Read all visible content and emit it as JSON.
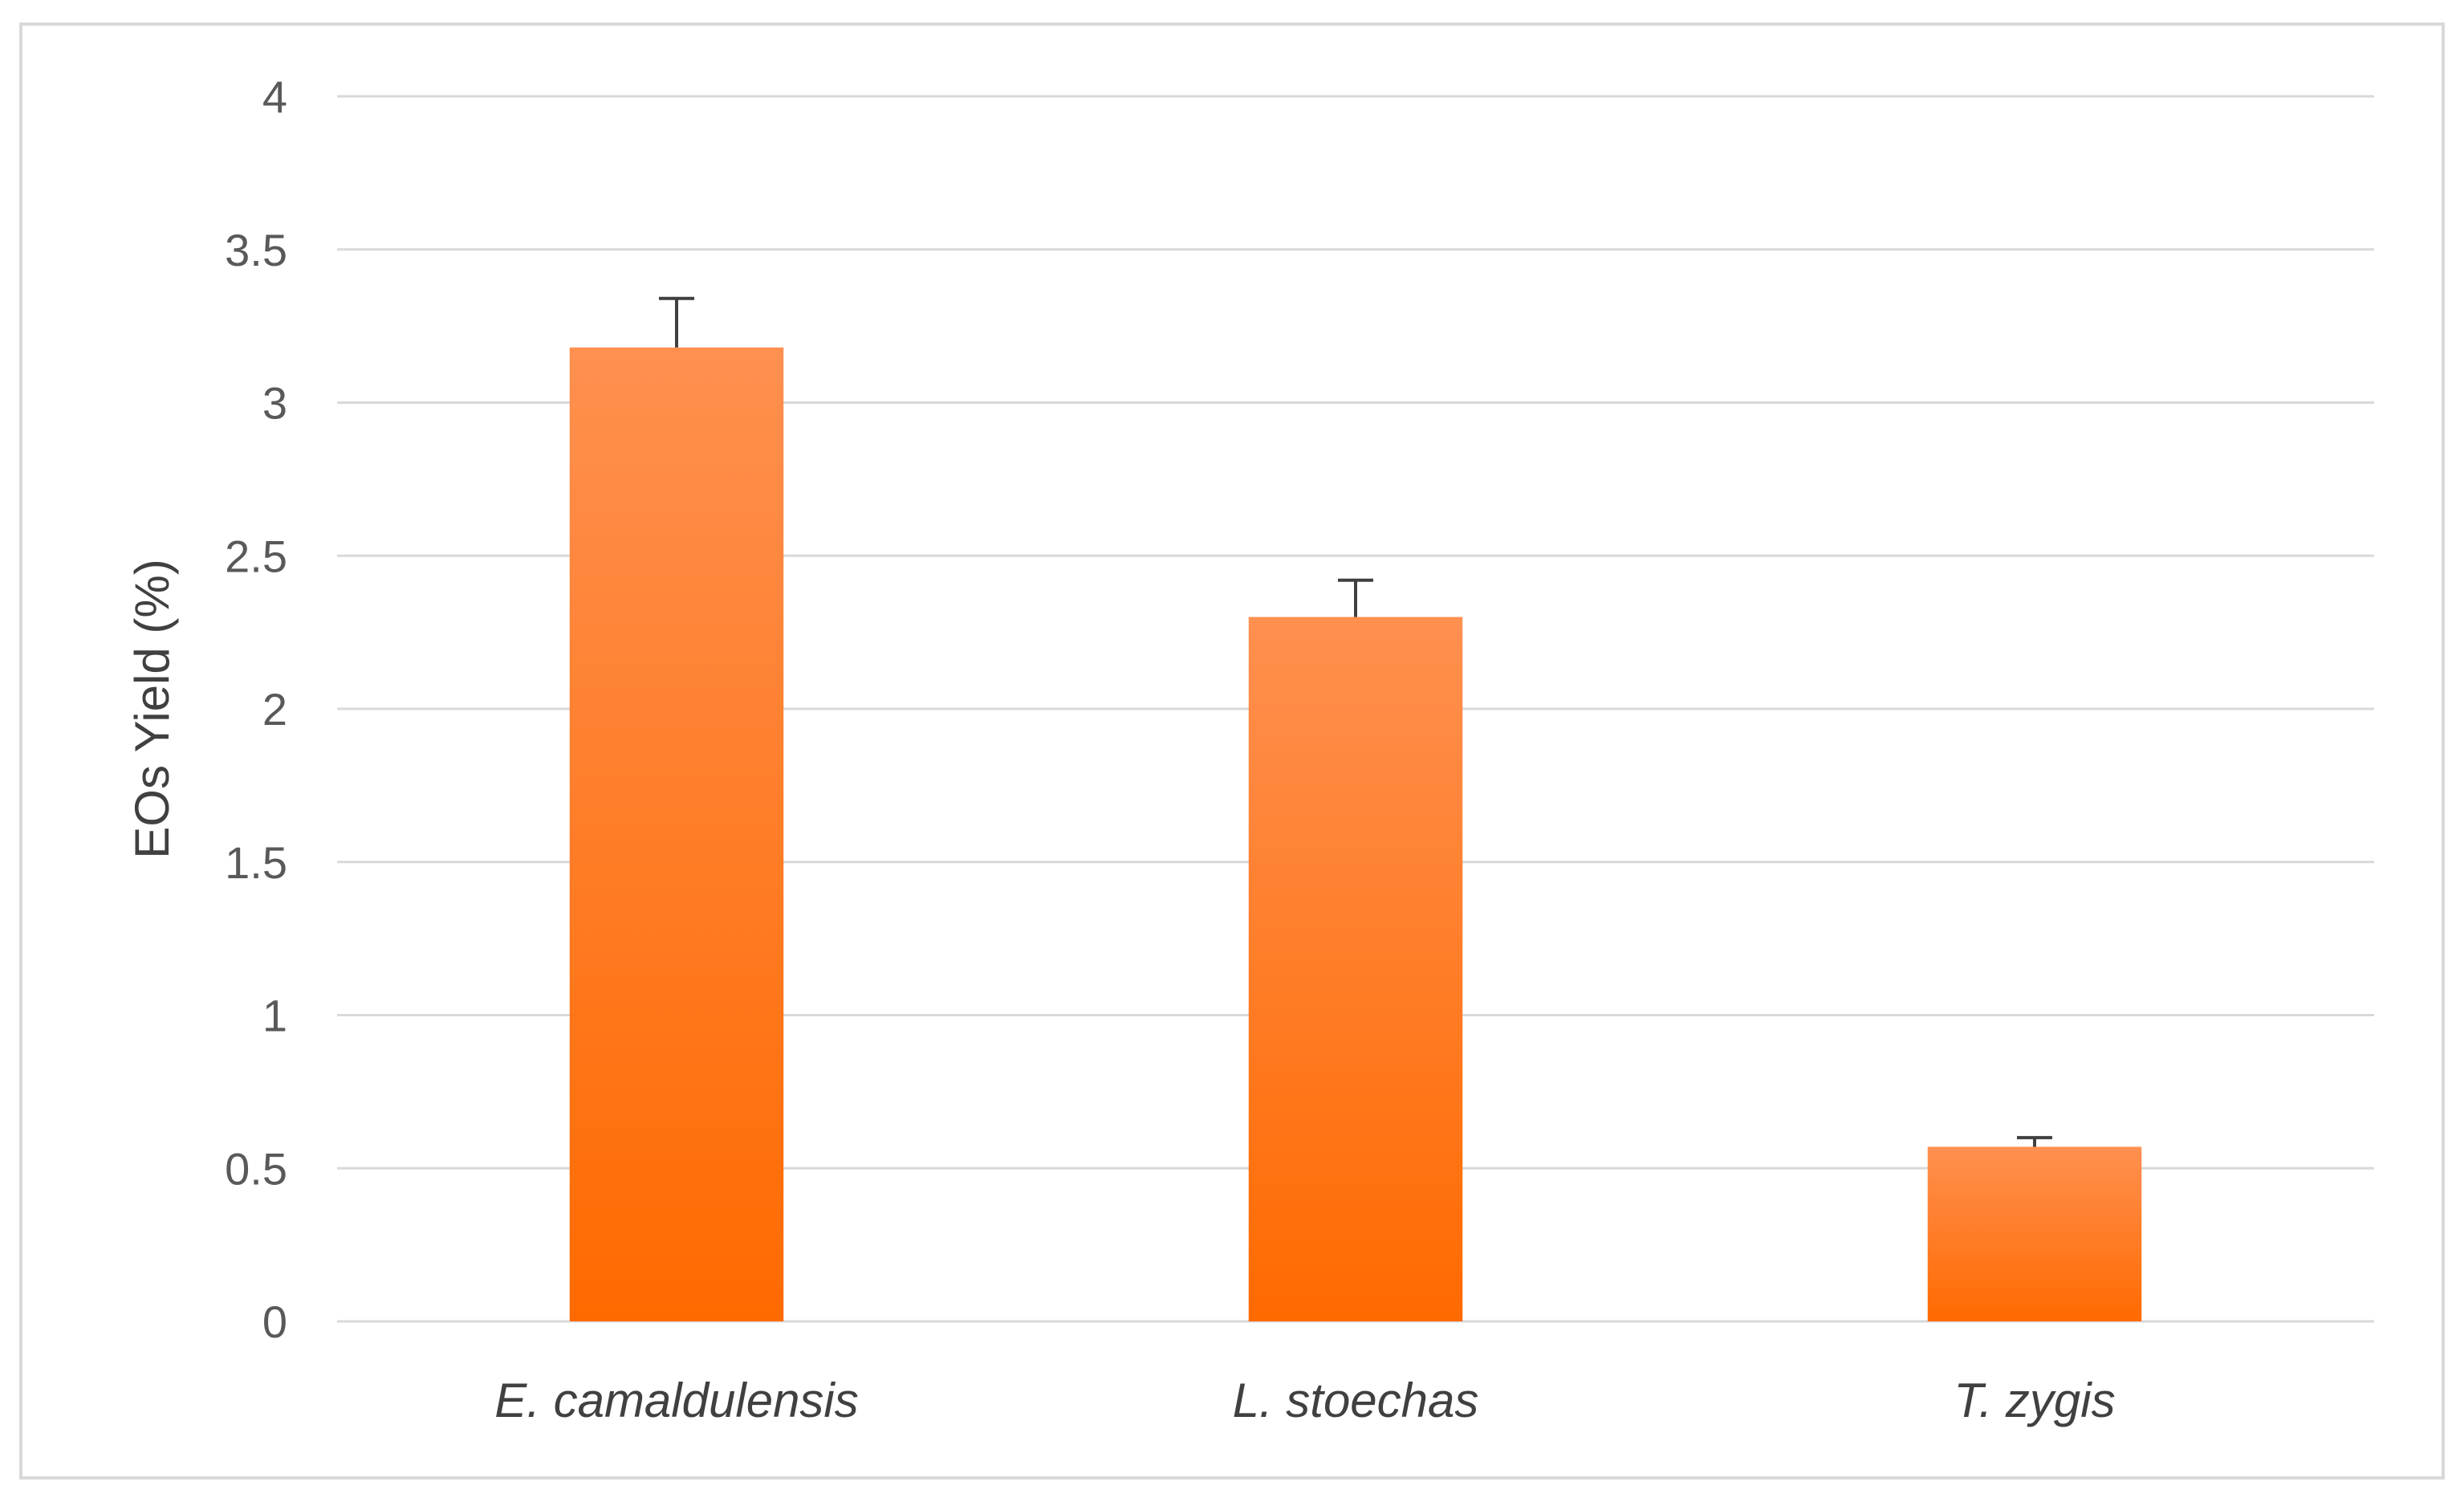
{
  "chart_data": {
    "type": "bar",
    "title": "",
    "xlabel": "",
    "ylabel": "EOs Yield (%)",
    "categories": [
      "E. camaldulensis",
      "L. stoechas",
      "T. zygis"
    ],
    "values": [
      3.18,
      2.3,
      0.57
    ],
    "error_bars": [
      0.16,
      0.12,
      0.03
    ],
    "ylim": [
      0,
      4
    ],
    "yticks": [
      "0",
      "0.5",
      "1",
      "1.5",
      "2",
      "2.5",
      "3",
      "3.5",
      "4"
    ],
    "grid": true,
    "legend": "none",
    "colors": {
      "bar_top": "#ff9050",
      "bar_bottom": "#ff6a00",
      "gridline": "#d9d9d9",
      "frame": "#d9d9d9",
      "error_bar": "#404040"
    }
  }
}
